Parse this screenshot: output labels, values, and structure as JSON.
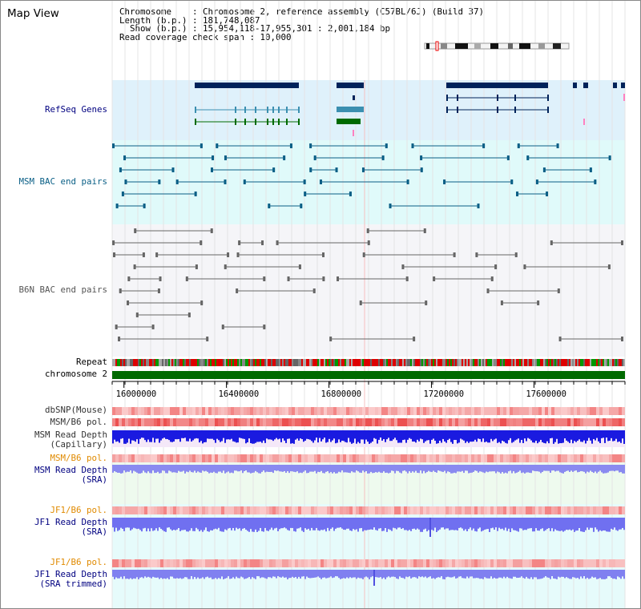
{
  "view_title": "Map View",
  "info": {
    "chromosome": "Chromosome    : Chromosome 2, reference assembly (C57BL/6J) (Build 37)",
    "length": "Length (b.p.) : 181,748,087",
    "show": "  Show (b.p.) : 15,954,118-17,955,301 : 2,001,184 bp",
    "coverage": "Read coverage check span : 10,000"
  },
  "tracks": {
    "refseq": "RefSeq Genes",
    "msm_bac": "MSM BAC end pairs",
    "b6n_bac": "B6N BAC end pairs",
    "repeat": "Repeat",
    "chromosome": "chromosome 2",
    "dbsnp": "dbSNP(Mouse)",
    "msm_b6_pol": "MSM/B6 pol.",
    "msm_depth_cap_1": "MSM Read Depth",
    "msm_depth_cap_2": "(Capillary)",
    "msm_b6_pol_2": "MSM/B6 pol.",
    "msm_depth_sra_1": "MSM Read Depth",
    "msm_depth_sra_2": "(SRA)",
    "jf1_b6_pol": "JF1/B6 pol.",
    "jf1_depth_sra_1": "JF1 Read Depth",
    "jf1_depth_sra_2": "(SRA)",
    "jf1_b6_pol_2": "JF1/B6 pol.",
    "jf1_depth_trim_1": "JF1 Read Depth",
    "jf1_depth_trim_2": "(SRA trimmed)"
  },
  "axis": {
    "start": 15954118,
    "end": 17955301,
    "ticks": [
      "16000000",
      "16400000",
      "16800000",
      "17200000",
      "17600000"
    ]
  },
  "colors": {
    "refseq_band": "#dff1fb",
    "msm_band": "#e0fafa",
    "b6n_band": "#f5f5f8",
    "gene_dark": "#00235a",
    "gene_mid": "#3b8fb0",
    "gene_green": "#006a00",
    "msm_line": "#0a5f86",
    "b6n_line": "#666666",
    "chromosome": "#006a00",
    "label_blue": "#000080",
    "label_orange": "#e08a00",
    "label_gray": "#333333"
  }
}
